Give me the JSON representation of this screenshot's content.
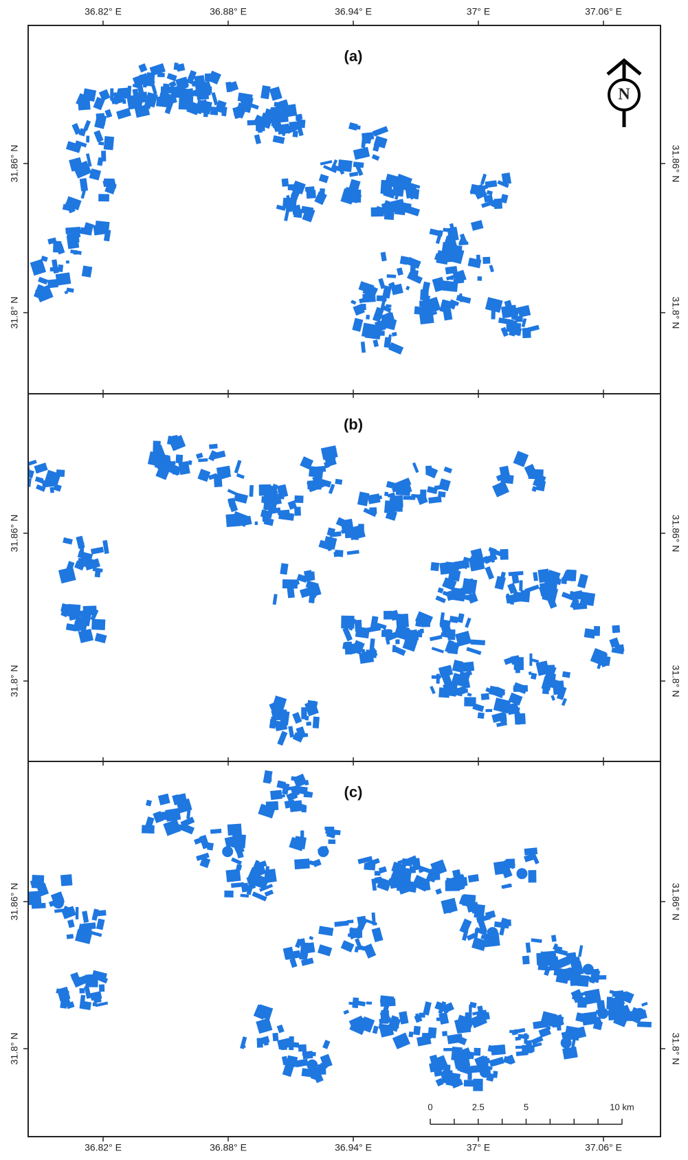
{
  "lon_labels_top": [
    "36.82° E",
    "36.88° E",
    "36.94° E",
    "37° E",
    "37.06° E"
  ],
  "lon_labels_bottom": [
    "36.82° E",
    "36.88° E",
    "36.94° E",
    "37° E",
    "37.06° E"
  ],
  "panels": [
    {
      "label": "(a)",
      "lat_labels": [
        "31.86° N",
        "31.8° N"
      ]
    },
    {
      "label": "(b)",
      "lat_labels": [
        "31.86° N",
        "31.8° N"
      ]
    },
    {
      "label": "(c)",
      "lat_labels": [
        "31.86° N",
        "31.8° N"
      ]
    }
  ],
  "north_arrow": {
    "label": "N"
  },
  "scale_bar": {
    "labels": [
      "0",
      "2.5",
      "5",
      "10 km"
    ]
  }
}
